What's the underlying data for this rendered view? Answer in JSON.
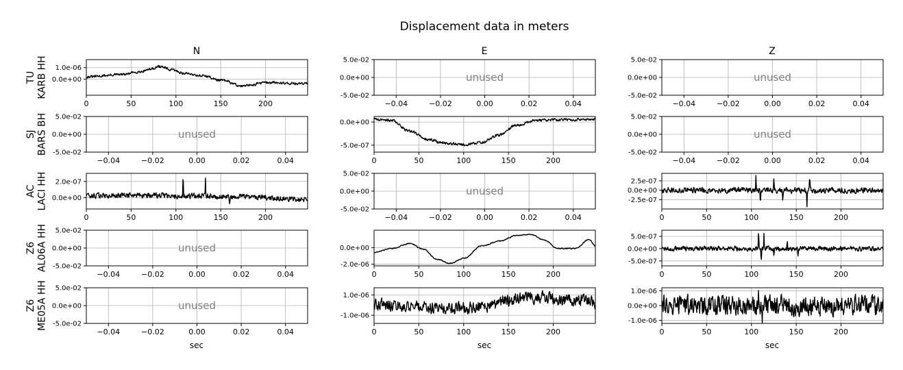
{
  "figure": {
    "title": "Displacement data in meters",
    "column_titles": [
      "N",
      "E",
      "Z"
    ],
    "row_labels": [
      [
        "TU",
        "KARB HH"
      ],
      [
        "SJ",
        "BARS BH"
      ],
      [
        "AC",
        "LACI HH"
      ],
      [
        "Z6",
        "AL06A HH"
      ],
      [
        "Z6",
        "ME05A HH"
      ]
    ],
    "xlabel": "sec",
    "unused_text": "unused",
    "colors": {
      "trace": "#000000",
      "grid": "#b0b0b0",
      "unused_text": "#808080"
    }
  },
  "chart_data": [
    {
      "row": 0,
      "col": 0,
      "type": "line",
      "used": true,
      "xlim": [
        0,
        247
      ],
      "ylim": [
        -1.4e-06,
        1.7e-06
      ],
      "xticks": [
        0,
        50,
        100,
        150,
        200
      ],
      "xticklabels": [
        "0",
        "50",
        "100",
        "150",
        "200"
      ],
      "yticks": [
        1e-06,
        0.0
      ],
      "yticklabels": [
        "1.0e-06",
        "0.0e+00"
      ],
      "shape": [
        [
          0,
          2e-07
        ],
        [
          40,
          4e-07
        ],
        [
          60,
          6.5e-07
        ],
        [
          70,
          8.5e-07
        ],
        [
          82,
          1.1e-06
        ],
        [
          95,
          8e-07
        ],
        [
          110,
          5e-07
        ],
        [
          130,
          3e-07
        ],
        [
          150,
          -1e-07
        ],
        [
          175,
          -6e-07
        ],
        [
          200,
          -3e-07
        ],
        [
          247,
          -4e-07
        ]
      ],
      "noise": 1.5e-07,
      "spikes": []
    },
    {
      "row": 0,
      "col": 1,
      "type": "line",
      "used": false,
      "xlim": [
        -0.05,
        0.05
      ],
      "ylim": [
        -0.05,
        0.05
      ],
      "xticks": [
        -0.04,
        -0.02,
        0,
        0.02,
        0.04
      ],
      "xticklabels": [
        "−0.04",
        "−0.02",
        "0.00",
        "0.02",
        "0.04"
      ],
      "yticks": [
        0.05,
        0,
        -0.05
      ],
      "yticklabels": [
        "5.0e-02",
        "0.0e+00",
        "-5.0e-02"
      ]
    },
    {
      "row": 0,
      "col": 2,
      "type": "line",
      "used": false,
      "xlim": [
        -0.05,
        0.05
      ],
      "ylim": [
        -0.05,
        0.05
      ],
      "xticks": [
        -0.04,
        -0.02,
        0,
        0.02,
        0.04
      ],
      "xticklabels": [
        "−0.04",
        "−0.02",
        "0.00",
        "0.02",
        "0.04"
      ],
      "yticks": [
        0.05,
        0,
        -0.05
      ],
      "yticklabels": [
        "5.0e-02",
        "0.0e+00",
        "-5.0e-02"
      ]
    },
    {
      "row": 1,
      "col": 0,
      "type": "line",
      "used": false,
      "xlim": [
        -0.05,
        0.05
      ],
      "ylim": [
        -0.05,
        0.05
      ],
      "xticks": [
        -0.04,
        -0.02,
        0,
        0.02,
        0.04
      ],
      "xticklabels": [
        "−0.04",
        "−0.02",
        "0.00",
        "0.02",
        "0.04"
      ],
      "yticks": [
        0.05,
        0,
        -0.05
      ],
      "yticklabels": [
        "5.0e-02",
        "0.0e+00",
        "-5.0e-02"
      ]
    },
    {
      "row": 1,
      "col": 1,
      "type": "line",
      "used": true,
      "xlim": [
        0,
        247
      ],
      "ylim": [
        -6.5e-07,
        1.2e-07
      ],
      "xticks": [
        0,
        50,
        100,
        150,
        200
      ],
      "xticklabels": [
        "0",
        "50",
        "100",
        "150",
        "200"
      ],
      "yticks": [
        0.0,
        -5e-07
      ],
      "yticklabels": [
        "0.0e+00",
        "-5.0e-07"
      ],
      "shape": [
        [
          0,
          6e-08
        ],
        [
          20,
          3e-08
        ],
        [
          40,
          -2e-07
        ],
        [
          60,
          -3.8e-07
        ],
        [
          80,
          -4.6e-07
        ],
        [
          100,
          -4.9e-07
        ],
        [
          120,
          -4.4e-07
        ],
        [
          140,
          -2.8e-07
        ],
        [
          160,
          -6e-08
        ],
        [
          180,
          3e-08
        ],
        [
          200,
          5e-08
        ],
        [
          247,
          6e-08
        ]
      ],
      "noise": 4e-08,
      "spikes": []
    },
    {
      "row": 1,
      "col": 2,
      "type": "line",
      "used": false,
      "xlim": [
        -0.05,
        0.05
      ],
      "ylim": [
        -0.05,
        0.05
      ],
      "xticks": [
        -0.04,
        -0.02,
        0,
        0.02,
        0.04
      ],
      "xticklabels": [
        "−0.04",
        "−0.02",
        "0.00",
        "0.02",
        "0.04"
      ],
      "yticks": [
        0.05,
        0,
        -0.05
      ],
      "yticklabels": [
        "5.0e-02",
        "0.0e+00",
        "-5.0e-02"
      ]
    },
    {
      "row": 2,
      "col": 0,
      "type": "line",
      "used": true,
      "xlim": [
        0,
        247
      ],
      "ylim": [
        -1.4e-07,
        3e-07
      ],
      "xticks": [
        0,
        50,
        100,
        150,
        200
      ],
      "xticklabels": [
        "0",
        "50",
        "100",
        "150",
        "200"
      ],
      "yticks": [
        2e-07,
        0.0
      ],
      "yticklabels": [
        "2.0e-07",
        "0.0e+00"
      ],
      "shape": [
        [
          0,
          2e-08
        ],
        [
          60,
          3e-08
        ],
        [
          120,
          2e-08
        ],
        [
          180,
          1e-08
        ],
        [
          247,
          -2e-08
        ]
      ],
      "noise": 4.5e-08,
      "spikes": [
        [
          108,
          2.9e-07
        ],
        [
          133,
          2.4e-07
        ],
        [
          160,
          -1.2e-07
        ]
      ]
    },
    {
      "row": 2,
      "col": 1,
      "type": "line",
      "used": false,
      "xlim": [
        -0.05,
        0.05
      ],
      "ylim": [
        -0.05,
        0.05
      ],
      "xticks": [
        -0.04,
        -0.02,
        0,
        0.02,
        0.04
      ],
      "xticklabels": [
        "−0.04",
        "−0.02",
        "0.00",
        "0.02",
        "0.04"
      ],
      "yticks": [
        0.05,
        0,
        -0.05
      ],
      "yticklabels": [
        "5.0e-02",
        "0.0e+00",
        "-5.0e-02"
      ]
    },
    {
      "row": 2,
      "col": 2,
      "type": "line",
      "used": true,
      "xlim": [
        0,
        247
      ],
      "ylim": [
        -5e-07,
        4.5e-07
      ],
      "xticks": [
        0,
        50,
        100,
        150,
        200
      ],
      "xticklabels": [
        "0",
        "50",
        "100",
        "150",
        "200"
      ],
      "yticks": [
        2.5e-07,
        0.0,
        -2.5e-07
      ],
      "yticklabels": [
        "2.5e-07",
        "0.0e+00",
        "-2.5e-07"
      ],
      "shape": [
        [
          0,
          0
        ],
        [
          247,
          0
        ]
      ],
      "noise": 1e-07,
      "spikes": [
        [
          105,
          4.5e-07
        ],
        [
          110,
          -4e-07
        ],
        [
          125,
          3.5e-07
        ],
        [
          135,
          -3.5e-07
        ],
        [
          162,
          -5e-07
        ],
        [
          165,
          4e-07
        ]
      ]
    },
    {
      "row": 3,
      "col": 0,
      "type": "line",
      "used": false,
      "xlim": [
        -0.05,
        0.05
      ],
      "ylim": [
        -0.05,
        0.05
      ],
      "xticks": [
        -0.04,
        -0.02,
        0,
        0.02,
        0.04
      ],
      "xticklabels": [
        "−0.04",
        "−0.02",
        "0.00",
        "0.02",
        "0.04"
      ],
      "yticks": [
        0.05,
        0,
        -0.05
      ],
      "yticklabels": [
        "5.0e-02",
        "0.0e+00",
        "-5.0e-02"
      ]
    },
    {
      "row": 3,
      "col": 1,
      "type": "line",
      "used": true,
      "xlim": [
        0,
        247
      ],
      "ylim": [
        -2.2e-06,
        2.1e-06
      ],
      "xticks": [
        0,
        50,
        100,
        150,
        200
      ],
      "xticklabels": [
        "0",
        "50",
        "100",
        "150",
        "200"
      ],
      "yticks": [
        0.0,
        -2e-06
      ],
      "yticklabels": [
        "0.0e+00",
        "-2.0e-06"
      ],
      "shape": [
        [
          0,
          -6e-07
        ],
        [
          20,
          -1e-07
        ],
        [
          40,
          5e-07
        ],
        [
          55,
          -2e-07
        ],
        [
          70,
          -1.4e-06
        ],
        [
          85,
          -1.9e-06
        ],
        [
          100,
          -1.3e-06
        ],
        [
          120,
          2e-07
        ],
        [
          140,
          8e-07
        ],
        [
          160,
          1.5e-06
        ],
        [
          175,
          1.6e-06
        ],
        [
          190,
          9e-07
        ],
        [
          205,
          -1e-07
        ],
        [
          225,
          -1e-07
        ],
        [
          240,
          1e-06
        ],
        [
          247,
          2e-07
        ]
      ],
      "noise": 8e-08,
      "spikes": []
    },
    {
      "row": 3,
      "col": 2,
      "type": "line",
      "used": true,
      "xlim": [
        0,
        247
      ],
      "ylim": [
        -7e-07,
        7.5e-07
      ],
      "xticks": [
        0,
        50,
        100,
        150,
        200
      ],
      "xticklabels": [
        "0",
        "50",
        "100",
        "150",
        "200"
      ],
      "yticks": [
        5e-07,
        0.0,
        -5e-07
      ],
      "yticklabels": [
        "5.0e-07",
        "0.0e+00",
        "-5.0e-07"
      ],
      "shape": [
        [
          0,
          0
        ],
        [
          247,
          0
        ]
      ],
      "noise": 1.3e-07,
      "spikes": [
        [
          108,
          7.5e-07
        ],
        [
          111,
          -6.5e-07
        ],
        [
          114,
          6e-07
        ],
        [
          125,
          -4e-07
        ],
        [
          140,
          4e-07
        ],
        [
          152,
          -3.5e-07
        ]
      ]
    },
    {
      "row": 4,
      "col": 0,
      "type": "line",
      "used": false,
      "xlim": [
        -0.05,
        0.05
      ],
      "ylim": [
        -0.05,
        0.05
      ],
      "xticks": [
        -0.04,
        -0.02,
        0,
        0.02,
        0.04
      ],
      "xticklabels": [
        "−0.04",
        "−0.02",
        "0.00",
        "0.02",
        "0.04"
      ],
      "yticks": [
        0.05,
        0,
        -0.05
      ],
      "yticklabels": [
        "5.0e-02",
        "0.0e+00",
        "-5.0e-02"
      ]
    },
    {
      "row": 4,
      "col": 1,
      "type": "line",
      "used": true,
      "xlim": [
        0,
        247
      ],
      "ylim": [
        -1.8e-06,
        1.7e-06
      ],
      "xticks": [
        0,
        50,
        100,
        150,
        200
      ],
      "xticklabels": [
        "0",
        "50",
        "100",
        "150",
        "200"
      ],
      "yticks": [
        1e-06,
        -1e-06
      ],
      "yticklabels": [
        "1.0e-06",
        "-1.0e-06"
      ],
      "shape": [
        [
          0,
          1e-07
        ],
        [
          50,
          -2e-07
        ],
        [
          80,
          -4e-07
        ],
        [
          120,
          -2e-07
        ],
        [
          150,
          5e-07
        ],
        [
          175,
          8e-07
        ],
        [
          210,
          5e-07
        ],
        [
          247,
          3e-07
        ]
      ],
      "noise": 8e-07,
      "spikes": []
    },
    {
      "row": 4,
      "col": 2,
      "type": "line",
      "used": true,
      "xlim": [
        0,
        247
      ],
      "ylim": [
        -1.2e-06,
        1.2e-06
      ],
      "xticks": [
        0,
        50,
        100,
        150,
        200
      ],
      "xticklabels": [
        "0",
        "50",
        "100",
        "150",
        "200"
      ],
      "yticks": [
        1e-06,
        0.0,
        -1e-06
      ],
      "yticklabels": [
        "1.0e-06",
        "0.0e+00",
        "-1.0e-06"
      ],
      "shape": [
        [
          0,
          0
        ],
        [
          247,
          0
        ]
      ],
      "noise": 9e-07,
      "spikes": [
        [
          108,
          1.2e-06
        ],
        [
          112,
          -1.2e-06
        ]
      ]
    }
  ]
}
